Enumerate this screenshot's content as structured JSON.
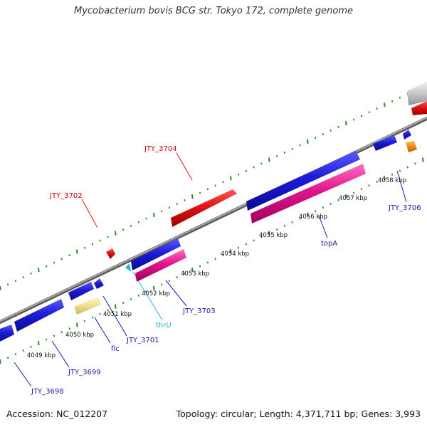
{
  "title": "Mycobacterium bovis BCG str. Tokyo 172, complete genome",
  "footer": {
    "accession": "Accession: NC_012207",
    "summary": "Topology: circular; Length: 4,371,711 bp; Genes: 3,993"
  },
  "colors": {
    "backbone": "#7f7f7f",
    "tick": "#2b8a2b",
    "gene_blue": "#1c1cd8",
    "gene_red": "#e01414",
    "gene_magenta": "#e0148c",
    "gene_orange": "#f08c14",
    "gene_gray": "#c8c8c8",
    "gene_khaki": "#f0e08c",
    "trna_cyan": "#28b4e6",
    "label_red": "#c80000",
    "label_blue": "#1a1aa8",
    "label_cyan": "#30a8d8"
  },
  "kbp_labels": [
    {
      "text": "4049 kbp"
    },
    {
      "text": "4050 kbp"
    },
    {
      "text": "4051 kbp"
    },
    {
      "text": "4052 kbp"
    },
    {
      "text": "4053 kbp"
    },
    {
      "text": "4054 kbp"
    },
    {
      "text": "4055 kbp"
    },
    {
      "text": "4056 kbp"
    },
    {
      "text": "4057 kbp"
    },
    {
      "text": "4058 kbp"
    }
  ],
  "gene_labels": [
    {
      "text": "JTY_3704",
      "color": "label_red"
    },
    {
      "text": "JTY_3702",
      "color": "label_red"
    },
    {
      "text": "JTY_3706",
      "color": "label_blue"
    },
    {
      "text": "topA",
      "color": "label_blue"
    },
    {
      "text": "JTY_3703",
      "color": "label_blue"
    },
    {
      "text": "thrU",
      "color": "label_cyan"
    },
    {
      "text": "JTY_3701",
      "color": "label_blue"
    },
    {
      "text": "fic",
      "color": "label_blue"
    },
    {
      "text": "JTY_3699",
      "color": "label_blue"
    },
    {
      "text": "JTY_3698",
      "color": "label_blue"
    }
  ]
}
